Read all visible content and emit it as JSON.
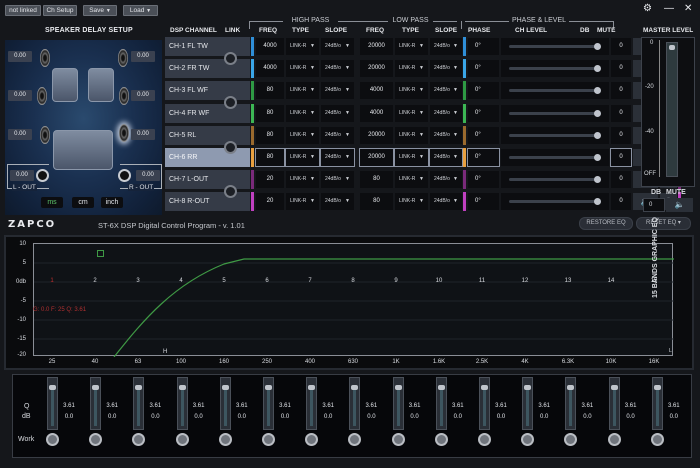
{
  "toolbar": {
    "not_linked": "not linked",
    "ch_setup": "Ch Setup",
    "save": "Save",
    "load": "Load",
    "dropdown_arrow": "▼"
  },
  "window_controls": {
    "settings": "⚙",
    "minimize": "—",
    "close": "✕"
  },
  "speaker_delay": {
    "title": "SPEAKER DELAY SETUP",
    "delays": {
      "front_left_tw": "0.00",
      "front_right_tw": "0.00",
      "front_left_wf": "0.00",
      "front_right_wf": "0.00",
      "rear_left": "0.00",
      "rear_right": "0.00",
      "l_out": "0.00",
      "r_out": "0.00"
    },
    "l_out_label": "L - OUT",
    "r_out_label": "R - OUT",
    "units": [
      "ms",
      "cm",
      "inch"
    ],
    "selected_unit": "ms"
  },
  "headers": {
    "dsp_channel": "DSP CHANNEL",
    "link": "LINK",
    "high_pass": "HIGH PASS",
    "low_pass": "LOW PASS",
    "phase_level": "PHASE & LEVEL",
    "freq": "FREQ",
    "type": "TYPE",
    "slope": "SLOPE",
    "phase": "PHASE",
    "ch_level": "CH LEVEL",
    "db": "DB",
    "mute": "MUTE",
    "master_level": "MASTER LEVEL"
  },
  "channels": [
    {
      "name": "CH-1 FL TW",
      "hp_freq": "4000",
      "hp_type": "LINK-R",
      "hp_slope": "24dB/o",
      "lp_freq": "20000",
      "lp_type": "LINK-R",
      "lp_slope": "24dB/o",
      "phase": "0°",
      "db": "0",
      "num": "1",
      "color": "#2f8fd8"
    },
    {
      "name": "CH-2 FR TW",
      "hp_freq": "4000",
      "hp_type": "LINK-R",
      "hp_slope": "24dB/o",
      "lp_freq": "20000",
      "lp_type": "LINK-R",
      "lp_slope": "24dB/o",
      "phase": "0°",
      "db": "0",
      "num": "2",
      "color": "#3aa6e8"
    },
    {
      "name": "CH-3 FL WF",
      "hp_freq": "80",
      "hp_type": "LINK-R",
      "hp_slope": "24dB/o",
      "lp_freq": "4000",
      "lp_type": "LINK-R",
      "lp_slope": "24dB/o",
      "phase": "0°",
      "db": "0",
      "num": "3",
      "color": "#2e9a44"
    },
    {
      "name": "CH-4 FR WF",
      "hp_freq": "80",
      "hp_type": "LINK-R",
      "hp_slope": "24dB/o",
      "lp_freq": "4000",
      "lp_type": "LINK-R",
      "lp_slope": "24dB/o",
      "phase": "0°",
      "db": "0",
      "num": "4",
      "color": "#3cb654"
    },
    {
      "name": "CH-5 RL",
      "hp_freq": "80",
      "hp_type": "LINK-R",
      "hp_slope": "24dB/o",
      "lp_freq": "20000",
      "lp_type": "LINK-R",
      "lp_slope": "24dB/o",
      "phase": "0°",
      "db": "0",
      "num": "5",
      "color": "#9a6a2e"
    },
    {
      "name": "CH-6 RR",
      "hp_freq": "80",
      "hp_type": "LINK-R",
      "hp_slope": "24dB/o",
      "lp_freq": "20000",
      "lp_type": "LINK-R",
      "lp_slope": "24dB/o",
      "phase": "0°",
      "db": "0",
      "num": "6",
      "color": "#e8a040",
      "selected": true
    },
    {
      "name": "CH-7 L-OUT",
      "hp_freq": "20",
      "hp_type": "LINK-R",
      "hp_slope": "24dB/o",
      "lp_freq": "80",
      "lp_type": "LINK-R",
      "lp_slope": "24dB/o",
      "phase": "0°",
      "db": "0",
      "num": "7",
      "color": "#7a2a7a"
    },
    {
      "name": "CH-8 R-OUT",
      "hp_freq": "20",
      "hp_type": "LINK-R",
      "hp_slope": "24dB/o",
      "lp_freq": "80",
      "lp_type": "LINK-R",
      "lp_slope": "24dB/o",
      "phase": "0°",
      "db": "0",
      "num": "8",
      "color": "#c040c0"
    }
  ],
  "master": {
    "scale": [
      "0",
      "-20",
      "-40",
      "OFF"
    ],
    "db_label": "DB",
    "mute_label": "MUTE",
    "db_value": "0"
  },
  "brand": {
    "logo": "ZAPCO",
    "title": "ST-6X DSP Digital Control Program - v. 1.01"
  },
  "eq_buttons": {
    "restore": "RESTORE EQ",
    "reset": "RESET EQ ▾"
  },
  "eq_graph": {
    "side_label": "15 BANDS GRAPHIC EQ",
    "y_ticks": [
      "10",
      "5",
      "0db",
      "-5",
      "-10",
      "-15",
      "-20"
    ],
    "x_ticks": [
      "25",
      "40",
      "63",
      "100",
      "160",
      "250",
      "400",
      "630",
      "1K",
      "1.6K",
      "2.5K",
      "4K",
      "6.3K",
      "10K",
      "16K"
    ],
    "band_numbers": [
      "1",
      "2",
      "3",
      "4",
      "5",
      "6",
      "7",
      "8",
      "9",
      "10",
      "11",
      "12",
      "13",
      "14",
      "15"
    ],
    "info_text": "G: 0.0  F: 25  Q: 3.61",
    "h_marker": "H",
    "l_marker": "L"
  },
  "eq_sliders": {
    "q_label": "Q",
    "db_label": "dB",
    "work_label": "Work",
    "bands": [
      {
        "q": "3.61",
        "db": "0.0"
      },
      {
        "q": "3.61",
        "db": "0.0"
      },
      {
        "q": "3.61",
        "db": "0.0"
      },
      {
        "q": "3.61",
        "db": "0.0"
      },
      {
        "q": "3.61",
        "db": "0.0"
      },
      {
        "q": "3.61",
        "db": "0.0"
      },
      {
        "q": "3.61",
        "db": "0.0"
      },
      {
        "q": "3.61",
        "db": "0.0"
      },
      {
        "q": "3.61",
        "db": "0.0"
      },
      {
        "q": "3.61",
        "db": "0.0"
      },
      {
        "q": "3.61",
        "db": "0.0"
      },
      {
        "q": "3.61",
        "db": "0.0"
      },
      {
        "q": "3.61",
        "db": "0.0"
      },
      {
        "q": "3.61",
        "db": "0.0"
      },
      {
        "q": "3.61",
        "db": "0.0"
      }
    ]
  }
}
